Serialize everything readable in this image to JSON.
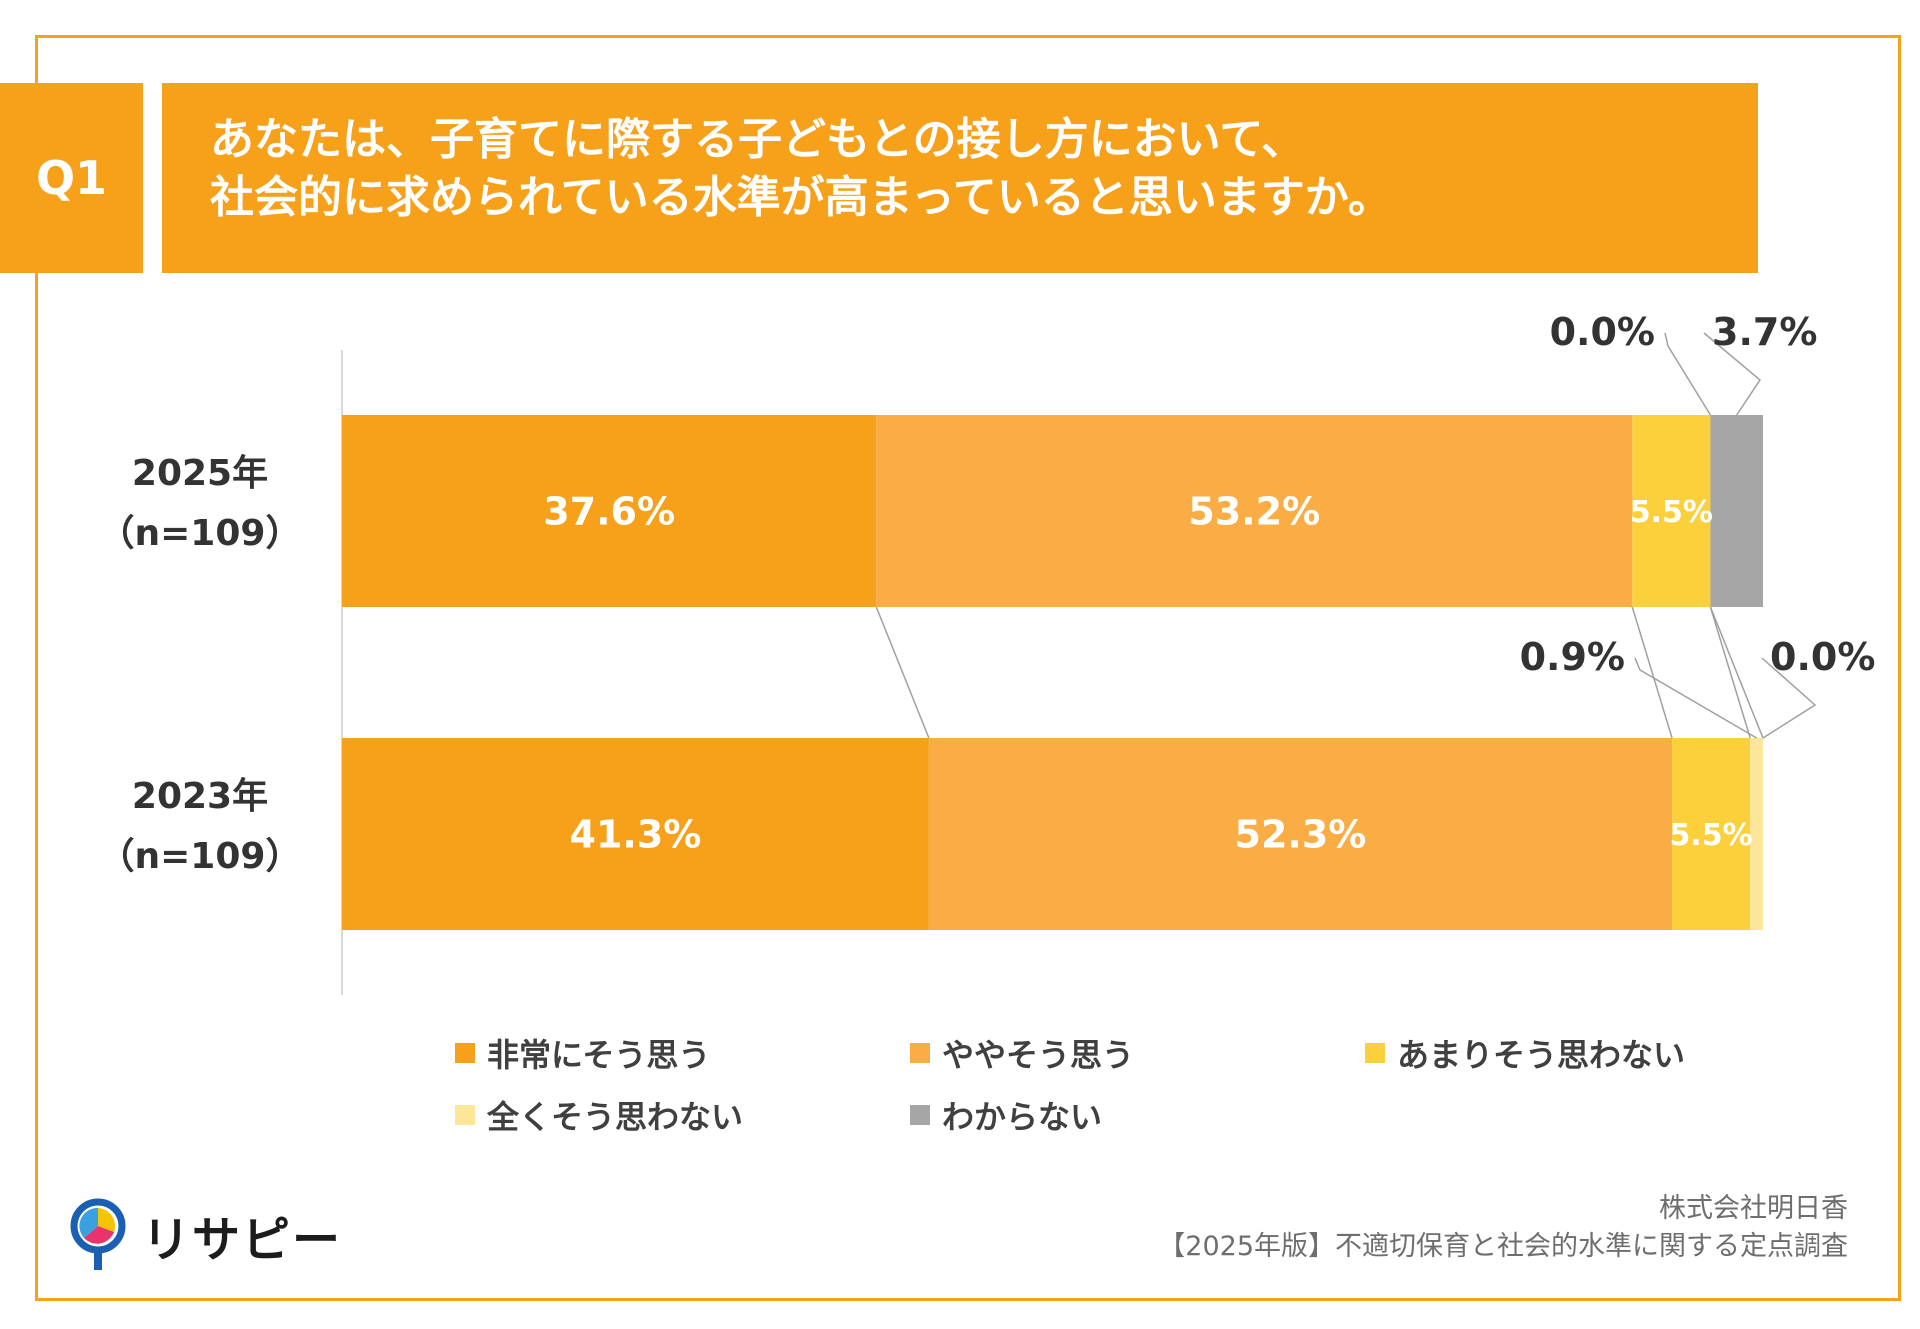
{
  "header": {
    "badge": "Q1",
    "title_line1": "あなたは、子育てに際する子どもとの接し方において、",
    "title_line2": "社会的に求められている水準が高まっていると思いますか。"
  },
  "chart_data": {
    "type": "bar",
    "orientation": "horizontal-stacked-100",
    "categories": [
      {
        "label": "2025年",
        "n_label": "（n=109）"
      },
      {
        "label": "2023年",
        "n_label": "（n=109）"
      }
    ],
    "series": [
      {
        "name": "非常にそう思う",
        "color": "#f7a01a",
        "values": [
          37.6,
          41.3
        ],
        "labels": [
          "37.6%",
          "41.3%"
        ]
      },
      {
        "name": "ややそう思う",
        "color": "#fbad45",
        "values": [
          53.2,
          52.3
        ],
        "labels": [
          "53.2%",
          "52.3%"
        ]
      },
      {
        "name": "あまりそう思わない",
        "color": "#fbd03a",
        "values": [
          5.5,
          5.5
        ],
        "labels": [
          "5.5%",
          "5.5%"
        ]
      },
      {
        "name": "全くそう思わない",
        "color": "#fde59a",
        "values": [
          0.0,
          0.9
        ],
        "labels": [
          "0.0%",
          "0.9%"
        ]
      },
      {
        "name": "わからない",
        "color": "#a6a6a6",
        "values": [
          3.7,
          0.0
        ],
        "labels": [
          "3.7%",
          "0.0%"
        ]
      }
    ],
    "xlim": [
      0,
      100
    ]
  },
  "footer": {
    "logo_text": "リサピー",
    "company": "株式会社明日香",
    "survey": "【2025年版】不適切保育と社会的水準に関する定点調査"
  }
}
